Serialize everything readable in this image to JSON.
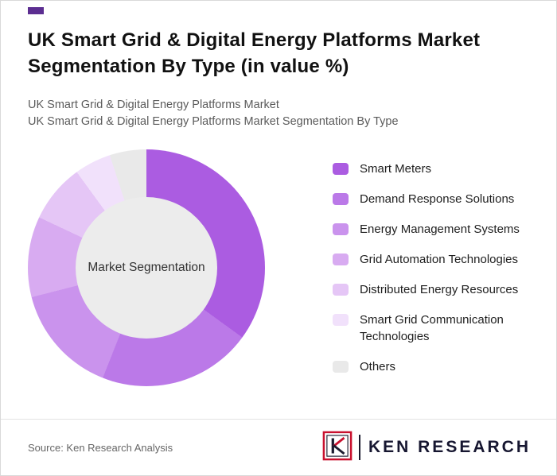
{
  "accent_color": "#5c2e91",
  "header": {
    "title": "UK Smart Grid & Digital Energy Platforms Market Segmentation By Type (in value %)",
    "subtitle1": "UK Smart Grid & Digital Energy Platforms Market",
    "subtitle2": "UK Smart Grid & Digital Energy Platforms Market Segmentation By Type"
  },
  "chart_data": {
    "type": "pie",
    "donut": true,
    "title": "UK Smart Grid & Digital Energy Platforms Market Segmentation By Type (in value %)",
    "center_label": "Market Segmentation",
    "categories": [
      "Smart Meters",
      "Demand Response Solutions",
      "Energy Management Systems",
      "Grid Automation Technologies",
      "Distributed Energy Resources",
      "Smart Grid Communication Technologies",
      "Others"
    ],
    "values": [
      35,
      21,
      15,
      11,
      8,
      5,
      5
    ],
    "colors": [
      "#ab5ce1",
      "#bb79e8",
      "#ca93ed",
      "#d8abf1",
      "#e5c6f6",
      "#f1e1fb",
      "#e9e9e9"
    ],
    "hole_color": "#ececec",
    "legend_position": "right",
    "start_angle_deg": 0
  },
  "footer": {
    "source": "Source: Ken Research Analysis",
    "wordmark": "KEN RESEARCH"
  }
}
